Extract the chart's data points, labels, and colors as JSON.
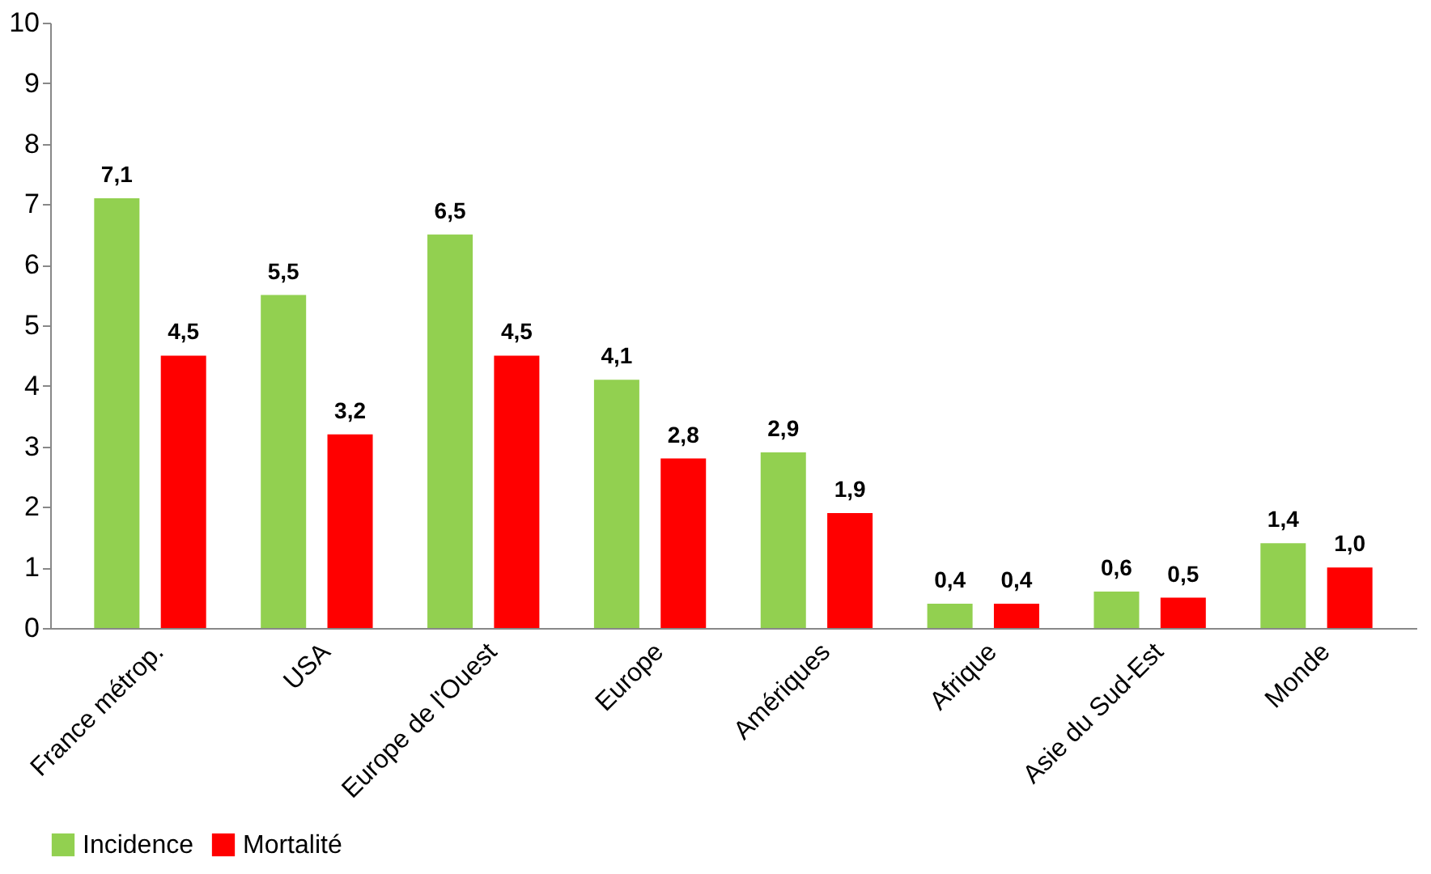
{
  "chart_data": {
    "type": "bar",
    "categories": [
      "France métrop.",
      "USA",
      "Europe de l'Ouest",
      "Europe",
      "Amériques",
      "Afrique",
      "Asie du Sud-Est",
      "Monde"
    ],
    "series": [
      {
        "name": "Incidence",
        "color": "#92d050",
        "values": [
          7.1,
          5.5,
          6.5,
          4.1,
          2.9,
          0.4,
          0.6,
          1.4
        ],
        "value_labels": [
          "7,1",
          "5,5",
          "6,5",
          "4,1",
          "2,9",
          "0,4",
          "0,6",
          "1,4"
        ]
      },
      {
        "name": "Mortalité",
        "color": "#ff0000",
        "values": [
          4.5,
          3.2,
          4.5,
          2.8,
          1.9,
          0.4,
          0.5,
          1.0
        ],
        "value_labels": [
          "4,5",
          "3,2",
          "4,5",
          "2,8",
          "1,9",
          "0,4",
          "0,5",
          "1,0"
        ]
      }
    ],
    "ylim": [
      0,
      10
    ],
    "yticks": [
      0,
      1,
      2,
      3,
      4,
      5,
      6,
      7,
      8,
      9,
      10
    ],
    "grid": false,
    "legend": "bottom"
  }
}
